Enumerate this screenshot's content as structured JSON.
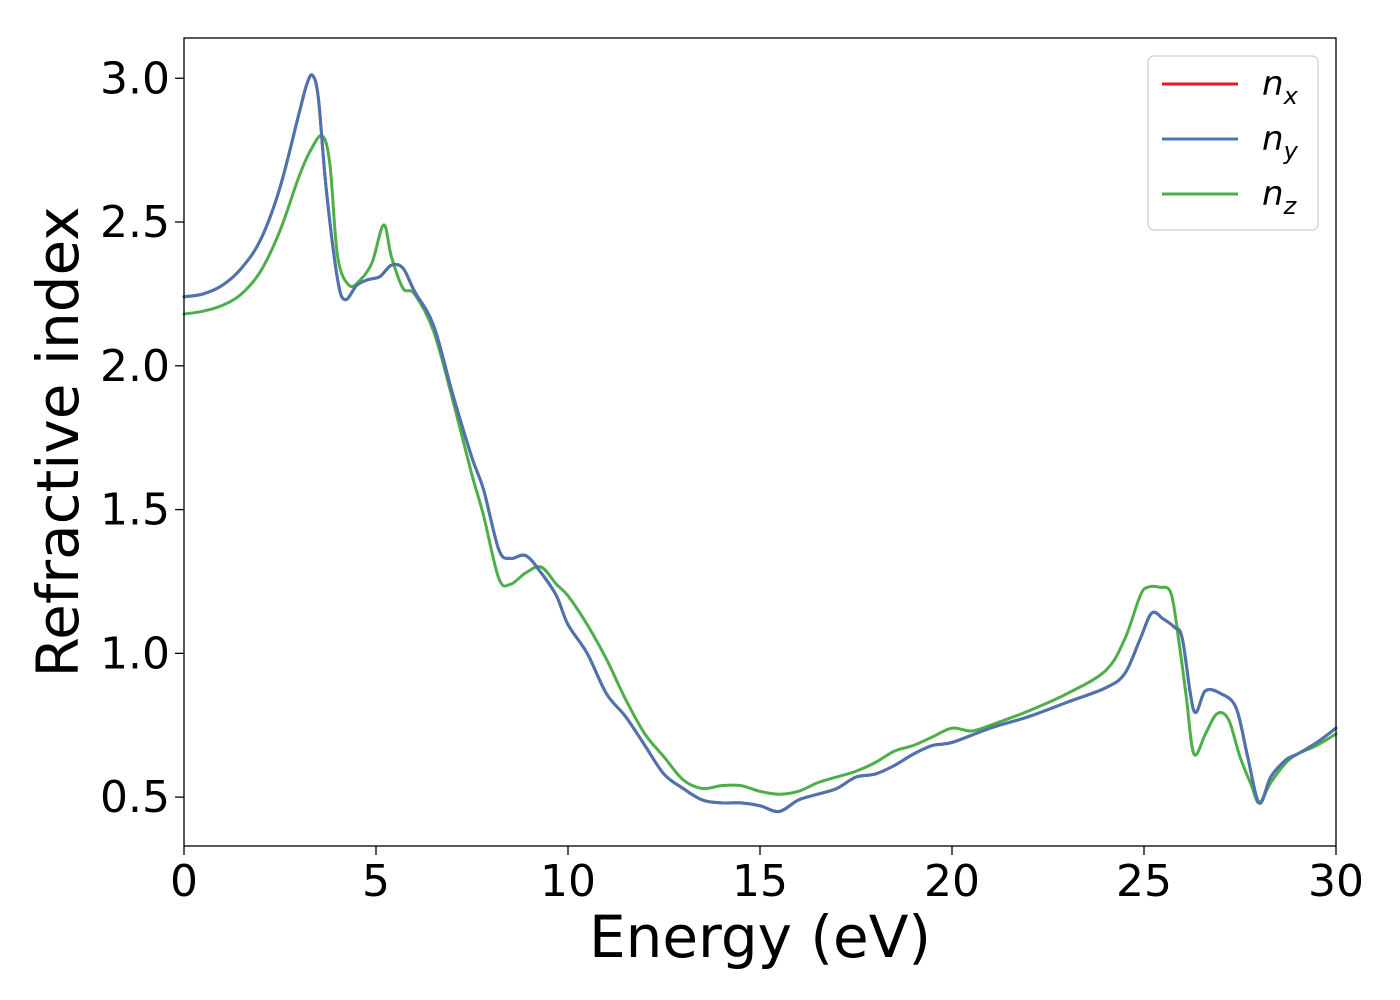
{
  "chart_data": {
    "type": "line",
    "title": "",
    "xlabel": "Energy (eV)",
    "ylabel": "Refractive index",
    "xlim": [
      0,
      30
    ],
    "ylim": [
      0.33,
      3.14
    ],
    "xticks": [
      0,
      5,
      10,
      15,
      20,
      25,
      30
    ],
    "xtick_labels": [
      "0",
      "5",
      "10",
      "15",
      "20",
      "25",
      "30"
    ],
    "yticks": [
      0.5,
      1.0,
      1.5,
      2.0,
      2.5,
      3.0
    ],
    "ytick_labels": [
      "0.5",
      "1.0",
      "1.5",
      "2.0",
      "2.5",
      "3.0"
    ],
    "grid": false,
    "legend_position": "top-right",
    "series": [
      {
        "name": "n_x",
        "legend_base": "n",
        "legend_sub": "x",
        "color": "#e41a1c",
        "x": [
          0,
          0.5,
          1,
          1.5,
          2,
          2.5,
          3,
          3.2,
          3.35,
          3.5,
          3.7,
          4.0,
          4.2,
          4.5,
          4.8,
          5.1,
          5.4,
          5.7,
          6.0,
          6.5,
          7.0,
          7.5,
          7.8,
          8.2,
          8.5,
          8.9,
          9.3,
          9.7,
          10.0,
          10.5,
          11.0,
          11.5,
          12.0,
          12.5,
          13.0,
          13.5,
          14.0,
          14.5,
          15.0,
          15.5,
          16.0,
          16.5,
          17.0,
          17.5,
          18.0,
          18.5,
          19.0,
          19.5,
          20.0,
          21.0,
          22.0,
          23.0,
          24.0,
          24.5,
          24.9,
          25.2,
          25.5,
          25.8,
          26.0,
          26.3,
          26.6,
          27.0,
          27.4,
          27.7,
          28.0,
          28.3,
          28.7,
          29.0,
          29.5,
          30.0
        ],
        "y": [
          2.24,
          2.25,
          2.28,
          2.34,
          2.44,
          2.62,
          2.88,
          2.98,
          3.01,
          2.93,
          2.62,
          2.3,
          2.23,
          2.28,
          2.3,
          2.31,
          2.35,
          2.34,
          2.26,
          2.14,
          1.9,
          1.68,
          1.57,
          1.36,
          1.33,
          1.34,
          1.28,
          1.2,
          1.1,
          1.0,
          0.86,
          0.78,
          0.68,
          0.58,
          0.53,
          0.49,
          0.48,
          0.48,
          0.47,
          0.45,
          0.49,
          0.51,
          0.53,
          0.57,
          0.58,
          0.61,
          0.65,
          0.68,
          0.69,
          0.74,
          0.78,
          0.83,
          0.88,
          0.93,
          1.05,
          1.14,
          1.12,
          1.09,
          1.05,
          0.8,
          0.87,
          0.86,
          0.81,
          0.64,
          0.48,
          0.57,
          0.63,
          0.65,
          0.69,
          0.74
        ]
      },
      {
        "name": "n_y",
        "legend_base": "n",
        "legend_sub": "y",
        "color": "#4a75b0",
        "x": [
          0,
          0.5,
          1,
          1.5,
          2,
          2.5,
          3,
          3.2,
          3.35,
          3.5,
          3.7,
          4.0,
          4.2,
          4.5,
          4.8,
          5.1,
          5.4,
          5.7,
          6.0,
          6.5,
          7.0,
          7.5,
          7.8,
          8.2,
          8.5,
          8.9,
          9.3,
          9.7,
          10.0,
          10.5,
          11.0,
          11.5,
          12.0,
          12.5,
          13.0,
          13.5,
          14.0,
          14.5,
          15.0,
          15.5,
          16.0,
          16.5,
          17.0,
          17.5,
          18.0,
          18.5,
          19.0,
          19.5,
          20.0,
          21.0,
          22.0,
          23.0,
          24.0,
          24.5,
          24.9,
          25.2,
          25.5,
          25.8,
          26.0,
          26.3,
          26.6,
          27.0,
          27.4,
          27.7,
          28.0,
          28.3,
          28.7,
          29.0,
          29.5,
          30.0
        ],
        "y": [
          2.24,
          2.25,
          2.28,
          2.34,
          2.44,
          2.62,
          2.88,
          2.98,
          3.01,
          2.93,
          2.62,
          2.3,
          2.23,
          2.28,
          2.3,
          2.31,
          2.35,
          2.34,
          2.26,
          2.14,
          1.9,
          1.68,
          1.57,
          1.36,
          1.33,
          1.34,
          1.28,
          1.2,
          1.1,
          1.0,
          0.86,
          0.78,
          0.68,
          0.58,
          0.53,
          0.49,
          0.48,
          0.48,
          0.47,
          0.45,
          0.49,
          0.51,
          0.53,
          0.57,
          0.58,
          0.61,
          0.65,
          0.68,
          0.69,
          0.74,
          0.78,
          0.83,
          0.88,
          0.93,
          1.05,
          1.14,
          1.12,
          1.09,
          1.05,
          0.8,
          0.87,
          0.86,
          0.81,
          0.64,
          0.48,
          0.57,
          0.63,
          0.65,
          0.69,
          0.74
        ]
      },
      {
        "name": "n_z",
        "legend_base": "n",
        "legend_sub": "z",
        "color": "#4daf4a",
        "x": [
          0,
          0.5,
          1,
          1.5,
          2,
          2.5,
          3,
          3.3,
          3.6,
          3.8,
          4.0,
          4.3,
          4.6,
          4.9,
          5.2,
          5.4,
          5.7,
          6.0,
          6.5,
          7.0,
          7.5,
          7.8,
          8.2,
          8.5,
          8.9,
          9.3,
          9.7,
          10.0,
          10.5,
          11.0,
          11.5,
          12.0,
          12.5,
          13.0,
          13.5,
          14.0,
          14.5,
          15.0,
          15.5,
          16.0,
          16.5,
          17.0,
          17.5,
          18.0,
          18.5,
          19.0,
          19.5,
          20.0,
          20.5,
          21.0,
          22.0,
          23.0,
          24.0,
          24.5,
          24.9,
          25.1,
          25.4,
          25.7,
          25.9,
          26.1,
          26.3,
          26.6,
          26.9,
          27.2,
          27.5,
          27.8,
          28.0,
          28.3,
          28.7,
          29.0,
          29.5,
          30.0
        ],
        "y": [
          2.18,
          2.19,
          2.21,
          2.25,
          2.33,
          2.47,
          2.66,
          2.75,
          2.8,
          2.7,
          2.38,
          2.28,
          2.3,
          2.36,
          2.49,
          2.38,
          2.27,
          2.25,
          2.12,
          1.88,
          1.62,
          1.48,
          1.26,
          1.24,
          1.28,
          1.3,
          1.24,
          1.2,
          1.1,
          0.98,
          0.84,
          0.72,
          0.64,
          0.56,
          0.53,
          0.54,
          0.54,
          0.52,
          0.51,
          0.52,
          0.55,
          0.57,
          0.59,
          0.62,
          0.66,
          0.68,
          0.71,
          0.74,
          0.73,
          0.75,
          0.8,
          0.86,
          0.94,
          1.05,
          1.2,
          1.23,
          1.23,
          1.21,
          1.05,
          0.85,
          0.65,
          0.72,
          0.79,
          0.77,
          0.64,
          0.54,
          0.48,
          0.55,
          0.62,
          0.65,
          0.68,
          0.72
        ]
      }
    ]
  }
}
